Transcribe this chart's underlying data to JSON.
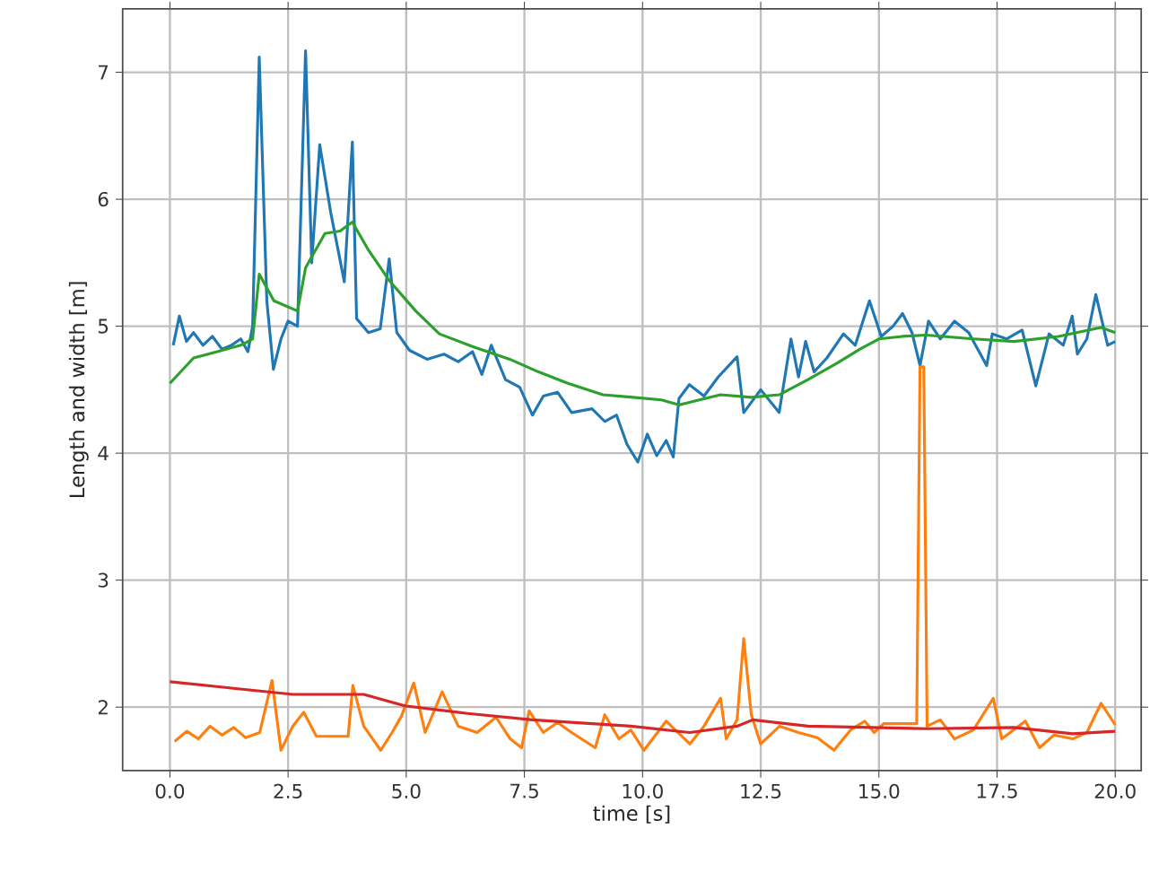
{
  "chart_data": {
    "type": "line",
    "xlabel": "time [s]",
    "ylabel": "Length and width [m]",
    "xlim": [
      -1.0,
      20.55
    ],
    "ylim": [
      1.5,
      7.5
    ],
    "xticks": [
      {
        "value": 0,
        "label": "0.0"
      },
      {
        "value": 2.5,
        "label": "2.5"
      },
      {
        "value": 5,
        "label": "5.0"
      },
      {
        "value": 7.5,
        "label": "7.5"
      },
      {
        "value": 10,
        "label": "10.0"
      },
      {
        "value": 12.5,
        "label": "12.5"
      },
      {
        "value": 15,
        "label": "15.0"
      },
      {
        "value": 17.5,
        "label": "17.5"
      },
      {
        "value": 20,
        "label": "20.0"
      }
    ],
    "yticks": [
      2,
      3,
      4,
      5,
      6,
      7
    ],
    "grid": true,
    "series": [
      {
        "color": "#1f77b4",
        "x": [
          0.07,
          0.2,
          0.35,
          0.5,
          0.7,
          0.9,
          1.1,
          1.3,
          1.5,
          1.65,
          1.75,
          1.89,
          2.05,
          2.19,
          2.35,
          2.5,
          2.7,
          2.87,
          3.0,
          3.17,
          3.4,
          3.69,
          3.86,
          3.95,
          4.2,
          4.45,
          4.64,
          4.8,
          5.07,
          5.44,
          5.8,
          6.1,
          6.4,
          6.6,
          6.8,
          7.1,
          7.4,
          7.67,
          7.9,
          8.2,
          8.5,
          8.93,
          9.2,
          9.45,
          9.67,
          9.9,
          10.1,
          10.3,
          10.5,
          10.65,
          10.77,
          10.99,
          11.3,
          11.6,
          12.0,
          12.14,
          12.5,
          12.89,
          13.14,
          13.3,
          13.45,
          13.63,
          13.9,
          14.25,
          14.5,
          14.8,
          15.05,
          15.3,
          15.5,
          15.7,
          15.87,
          16.05,
          16.3,
          16.6,
          16.9,
          17.28,
          17.4,
          17.7,
          18.03,
          18.32,
          18.6,
          18.9,
          19.09,
          19.2,
          19.4,
          19.59,
          19.84,
          20.0
        ],
        "values": [
          4.85,
          5.08,
          4.88,
          4.95,
          4.85,
          4.92,
          4.82,
          4.85,
          4.9,
          4.8,
          5.0,
          7.12,
          5.2,
          4.66,
          4.9,
          5.04,
          5.0,
          7.17,
          5.5,
          6.43,
          5.9,
          5.35,
          6.45,
          5.06,
          4.95,
          4.98,
          5.53,
          4.95,
          4.81,
          4.74,
          4.78,
          4.72,
          4.8,
          4.62,
          4.85,
          4.58,
          4.52,
          4.3,
          4.45,
          4.48,
          4.32,
          4.35,
          4.25,
          4.3,
          4.07,
          3.93,
          4.15,
          3.98,
          4.1,
          3.97,
          4.43,
          4.54,
          4.45,
          4.6,
          4.76,
          4.32,
          4.5,
          4.32,
          4.9,
          4.6,
          4.88,
          4.64,
          4.75,
          4.94,
          4.85,
          5.2,
          4.92,
          5.0,
          5.1,
          4.95,
          4.69,
          5.04,
          4.9,
          5.04,
          4.95,
          4.69,
          4.94,
          4.9,
          4.97,
          4.53,
          4.94,
          4.85,
          5.08,
          4.78,
          4.9,
          5.25,
          4.85,
          4.88
        ]
      },
      {
        "color": "#ff7f0e",
        "x": [
          0.1,
          0.36,
          0.6,
          0.85,
          1.1,
          1.35,
          1.6,
          1.9,
          2.16,
          2.35,
          2.6,
          2.83,
          3.1,
          3.77,
          3.87,
          4.1,
          4.46,
          4.7,
          4.9,
          5.16,
          5.4,
          5.76,
          6.1,
          6.5,
          6.9,
          7.2,
          7.44,
          7.6,
          7.9,
          8.2,
          8.5,
          9.0,
          9.2,
          9.5,
          9.75,
          10.03,
          10.5,
          11.0,
          11.3,
          11.65,
          11.77,
          12.0,
          12.14,
          12.3,
          12.5,
          12.9,
          13.3,
          13.7,
          14.05,
          14.4,
          14.7,
          14.9,
          15.1,
          15.8,
          15.87,
          15.95,
          16.02,
          16.3,
          16.6,
          17.0,
          17.42,
          17.6,
          18.1,
          18.4,
          18.7,
          19.1,
          19.4,
          19.7,
          20.0
        ],
        "values": [
          1.73,
          1.81,
          1.75,
          1.85,
          1.78,
          1.84,
          1.76,
          1.8,
          2.21,
          1.66,
          1.85,
          1.96,
          1.77,
          1.77,
          2.17,
          1.85,
          1.66,
          1.8,
          1.93,
          2.19,
          1.8,
          2.12,
          1.85,
          1.8,
          1.92,
          1.75,
          1.68,
          1.97,
          1.8,
          1.88,
          1.8,
          1.68,
          1.94,
          1.75,
          1.82,
          1.66,
          1.89,
          1.71,
          1.85,
          2.07,
          1.75,
          1.9,
          2.54,
          1.94,
          1.71,
          1.85,
          1.8,
          1.76,
          1.66,
          1.82,
          1.89,
          1.8,
          1.87,
          1.87,
          4.68,
          4.68,
          1.85,
          1.9,
          1.75,
          1.82,
          2.07,
          1.75,
          1.89,
          1.68,
          1.78,
          1.75,
          1.8,
          2.03,
          1.86
        ]
      },
      {
        "color": "#2ca02c",
        "x": [
          0.0,
          0.5,
          1.0,
          1.5,
          1.75,
          1.89,
          2.2,
          2.7,
          2.87,
          3.28,
          3.6,
          3.86,
          4.2,
          4.64,
          5.2,
          5.7,
          6.4,
          7.19,
          7.8,
          8.42,
          9.16,
          9.8,
          10.4,
          10.77,
          11.2,
          11.65,
          12.3,
          12.89,
          13.5,
          14.12,
          14.6,
          15.0,
          15.5,
          16.0,
          17.0,
          17.86,
          18.8,
          19.7,
          20.0
        ],
        "values": [
          4.55,
          4.75,
          4.8,
          4.85,
          4.9,
          5.41,
          5.2,
          5.12,
          5.46,
          5.73,
          5.75,
          5.82,
          5.6,
          5.36,
          5.12,
          4.94,
          4.84,
          4.74,
          4.64,
          4.55,
          4.46,
          4.44,
          4.42,
          4.38,
          4.42,
          4.46,
          4.44,
          4.46,
          4.58,
          4.71,
          4.82,
          4.9,
          4.92,
          4.93,
          4.9,
          4.88,
          4.92,
          4.99,
          4.95
        ]
      },
      {
        "color": "#d62728",
        "x": [
          0.0,
          1.3,
          2.6,
          4.1,
          4.97,
          6.3,
          7.67,
          9.75,
          11.0,
          12.0,
          12.33,
          13.5,
          16.0,
          17.86,
          19.1,
          20.0
        ],
        "values": [
          2.2,
          2.15,
          2.1,
          2.1,
          2.01,
          1.95,
          1.9,
          1.85,
          1.8,
          1.85,
          1.9,
          1.85,
          1.83,
          1.84,
          1.79,
          1.81
        ]
      }
    ]
  }
}
